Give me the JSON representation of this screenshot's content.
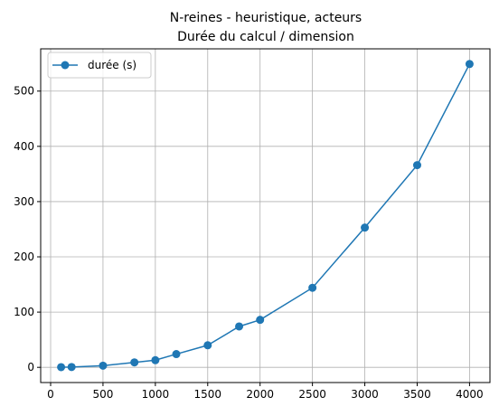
{
  "chart_data": {
    "type": "line",
    "title_lines": [
      "N-reines - heuristique, acteurs",
      "Durée du calcul / dimension"
    ],
    "xlabel": "",
    "ylabel": "",
    "x": [
      100,
      200,
      500,
      800,
      1000,
      1200,
      1500,
      1800,
      2000,
      2500,
      3000,
      3500,
      4000
    ],
    "series": [
      {
        "name": "durée (s)",
        "values": [
          0.4,
          0.6,
          3,
          9,
          13,
          24,
          40,
          74,
          86,
          144,
          253,
          366,
          549
        ],
        "color": "#1f77b4",
        "marker": "circle"
      }
    ],
    "xlim": [
      -95,
      4195
    ],
    "ylim": [
      -27.5,
      576.5
    ],
    "xticks": [
      0,
      500,
      1000,
      1500,
      2000,
      2500,
      3000,
      3500,
      4000
    ],
    "yticks": [
      0,
      100,
      200,
      300,
      400,
      500
    ],
    "xtick_labels": [
      "0",
      "500",
      "1000",
      "1500",
      "2000",
      "2500",
      "3000",
      "3500",
      "4000"
    ],
    "ytick_labels": [
      "0",
      "100",
      "200",
      "300",
      "400",
      "500"
    ],
    "grid": true,
    "legend_position": "upper-left"
  }
}
